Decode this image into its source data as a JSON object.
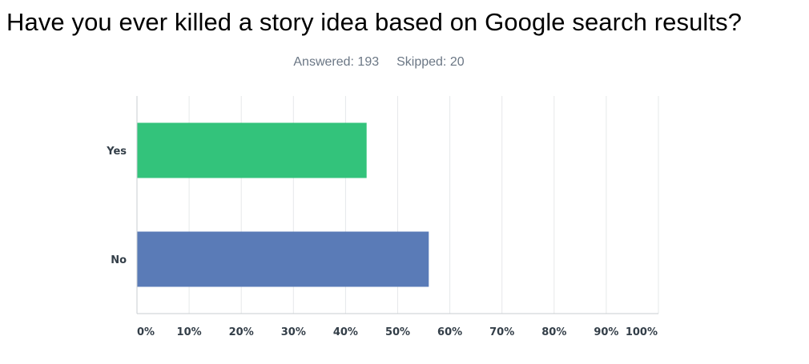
{
  "question": {
    "title": "Have you ever killed a story idea based on Google search results?"
  },
  "stats": {
    "answered_label": "Answered: 193",
    "skipped_label": "Skipped: 20"
  },
  "chart_data": {
    "type": "bar",
    "orientation": "horizontal",
    "title": "Have you ever killed a story idea based on Google search results?",
    "categories": [
      "Yes",
      "No"
    ],
    "values": [
      44.04,
      55.96
    ],
    "colors": [
      "#33c37b",
      "#5a7bb7"
    ],
    "xlim": [
      0,
      100
    ],
    "x_ticks": [
      "0%",
      "10%",
      "20%",
      "30%",
      "40%",
      "50%",
      "60%",
      "70%",
      "80%",
      "90%",
      "100%"
    ],
    "grid": true,
    "legend": "none"
  }
}
